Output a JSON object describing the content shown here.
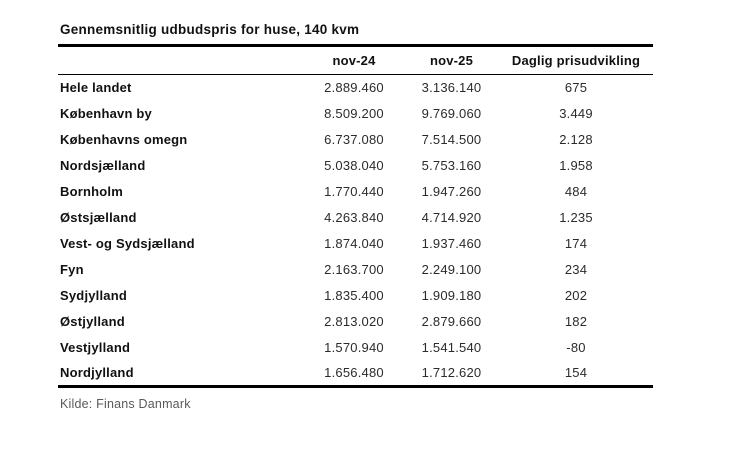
{
  "title": "Gennemsnitlig udbudspris for huse, 140 kvm",
  "source_line": "Kilde: Finans Danmark",
  "colors": {
    "rule": "#000000",
    "text": "#1c1c1c",
    "source_text": "#5a5a5a"
  },
  "table": {
    "columns": {
      "region": "",
      "nov24": "nov-24",
      "nov25": "nov-25",
      "daily": "Daglig prisudvikling"
    },
    "rows": [
      {
        "label": "Hele landet",
        "nov24": "2.889.460",
        "nov25": "3.136.140",
        "daily": "675"
      },
      {
        "label": "København by",
        "nov24": "8.509.200",
        "nov25": "9.769.060",
        "daily": "3.449"
      },
      {
        "label": "Københavns omegn",
        "nov24": "6.737.080",
        "nov25": "7.514.500",
        "daily": "2.128"
      },
      {
        "label": "Nordsjælland",
        "nov24": "5.038.040",
        "nov25": "5.753.160",
        "daily": "1.958"
      },
      {
        "label": "Bornholm",
        "nov24": "1.770.440",
        "nov25": "1.947.260",
        "daily": "484"
      },
      {
        "label": "Østsjælland",
        "nov24": "4.263.840",
        "nov25": "4.714.920",
        "daily": "1.235"
      },
      {
        "label": "Vest- og Sydsjælland",
        "nov24": "1.874.040",
        "nov25": "1.937.460",
        "daily": "174"
      },
      {
        "label": "Fyn",
        "nov24": "2.163.700",
        "nov25": "2.249.100",
        "daily": "234"
      },
      {
        "label": "Sydjylland",
        "nov24": "1.835.400",
        "nov25": "1.909.180",
        "daily": "202"
      },
      {
        "label": "Østjylland",
        "nov24": "2.813.020",
        "nov25": "2.879.660",
        "daily": "182"
      },
      {
        "label": "Vestjylland",
        "nov24": "1.570.940",
        "nov25": "1.541.540",
        "daily": "-80"
      },
      {
        "label": "Nordjylland",
        "nov24": "1.656.480",
        "nov25": "1.712.620",
        "daily": "154"
      }
    ]
  }
}
